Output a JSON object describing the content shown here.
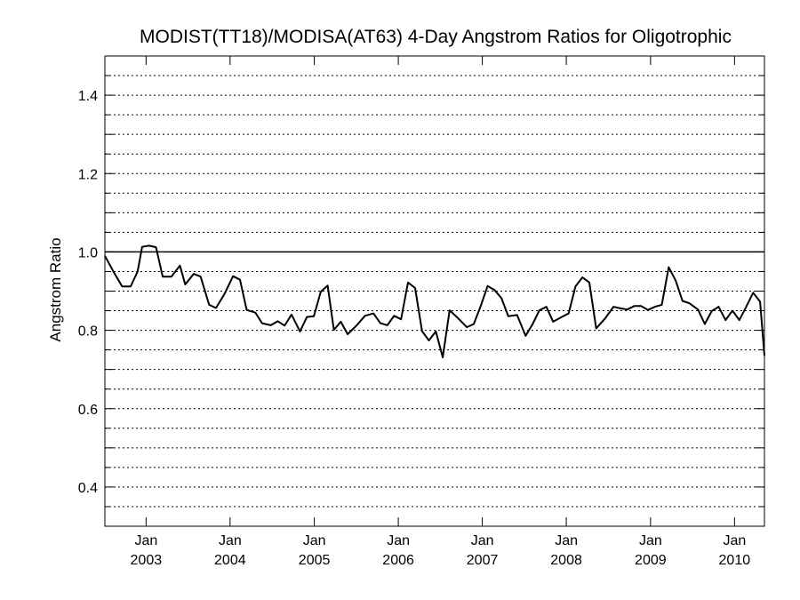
{
  "chart_data": {
    "type": "line",
    "title": "MODIST(TT18)/MODISA(AT63) 4-Day Angstrom Ratios for Oligotrophic",
    "xlabel": "",
    "ylabel": "Angstrom Ratio",
    "xlim": [
      "2002-07-06",
      "2010-05-11"
    ],
    "ylim": [
      0.3,
      1.5
    ],
    "yticks": [
      0.4,
      0.6,
      0.8,
      1.0,
      1.2,
      1.4
    ],
    "ytick_labels": [
      "0.4",
      "0.6",
      "0.8",
      "1.0",
      "1.2",
      "1.4"
    ],
    "xticks": [
      {
        "date": "2003-01-01",
        "month": "Jan",
        "year": "2003"
      },
      {
        "date": "2004-01-01",
        "month": "Jan",
        "year": "2004"
      },
      {
        "date": "2005-01-01",
        "month": "Jan",
        "year": "2005"
      },
      {
        "date": "2006-01-01",
        "month": "Jan",
        "year": "2006"
      },
      {
        "date": "2007-01-01",
        "month": "Jan",
        "year": "2007"
      },
      {
        "date": "2008-01-01",
        "month": "Jan",
        "year": "2008"
      },
      {
        "date": "2009-01-01",
        "month": "Jan",
        "year": "2009"
      },
      {
        "date": "2010-01-01",
        "month": "Jan",
        "year": "2010"
      }
    ],
    "grid": "dotted horizontal lines every 0.05",
    "reference_line": 1.0,
    "series": [
      {
        "color": "#000000",
        "x": [
          "2002-07-06",
          "2002-08-12",
          "2002-09-19",
          "2002-10-26",
          "2002-11-25",
          "2002-12-15",
          "2003-01-14",
          "2003-02-13",
          "2003-03-14",
          "2003-04-21",
          "2003-05-28",
          "2003-06-20",
          "2003-07-27",
          "2003-08-26",
          "2003-10-02",
          "2003-11-01",
          "2003-12-08",
          "2004-01-14",
          "2004-02-13",
          "2004-03-13",
          "2004-04-20",
          "2004-05-19",
          "2004-06-26",
          "2004-07-26",
          "2004-08-25",
          "2004-09-24",
          "2004-10-31",
          "2004-11-30",
          "2004-12-30",
          "2005-01-29",
          "2005-02-28",
          "2005-03-27",
          "2005-04-26",
          "2005-05-26",
          "2005-07-03",
          "2005-08-09",
          "2005-09-15",
          "2005-10-15",
          "2005-11-14",
          "2005-12-14",
          "2006-01-13",
          "2006-02-12",
          "2006-03-15",
          "2006-04-14",
          "2006-05-14",
          "2006-06-13",
          "2006-07-13",
          "2006-08-12",
          "2006-09-19",
          "2006-10-26",
          "2006-11-25",
          "2006-12-25",
          "2007-01-24",
          "2007-02-23",
          "2007-03-25",
          "2007-04-24",
          "2007-06-01",
          "2007-07-08",
          "2007-08-07",
          "2007-09-06",
          "2007-10-06",
          "2007-11-05",
          "2007-12-12",
          "2008-01-11",
          "2008-02-10",
          "2008-03-11",
          "2008-04-10",
          "2008-05-10",
          "2008-06-17",
          "2008-07-24",
          "2008-08-23",
          "2008-09-22",
          "2008-10-22",
          "2008-11-21",
          "2008-12-21",
          "2009-01-20",
          "2009-02-19",
          "2009-03-21",
          "2009-04-20",
          "2009-05-20",
          "2009-06-19",
          "2009-07-26",
          "2009-08-25",
          "2009-09-24",
          "2009-10-24",
          "2009-11-23",
          "2009-12-23",
          "2010-01-22",
          "2010-02-21",
          "2010-03-23",
          "2010-04-22",
          "2010-05-11"
        ],
        "y": [
          0.99,
          0.95,
          0.912,
          0.912,
          0.95,
          1.013,
          1.016,
          1.012,
          0.937,
          0.937,
          0.965,
          0.917,
          0.944,
          0.937,
          0.865,
          0.857,
          0.893,
          0.938,
          0.929,
          0.852,
          0.845,
          0.818,
          0.813,
          0.823,
          0.812,
          0.84,
          0.797,
          0.834,
          0.836,
          0.898,
          0.914,
          0.801,
          0.822,
          0.79,
          0.812,
          0.837,
          0.843,
          0.818,
          0.813,
          0.837,
          0.828,
          0.922,
          0.908,
          0.798,
          0.774,
          0.797,
          0.731,
          0.851,
          0.83,
          0.808,
          0.816,
          0.862,
          0.913,
          0.903,
          0.882,
          0.836,
          0.839,
          0.786,
          0.815,
          0.851,
          0.86,
          0.822,
          0.834,
          0.843,
          0.912,
          0.935,
          0.922,
          0.805,
          0.83,
          0.86,
          0.856,
          0.853,
          0.862,
          0.862,
          0.852,
          0.86,
          0.865,
          0.961,
          0.927,
          0.875,
          0.869,
          0.853,
          0.816,
          0.849,
          0.86,
          0.826,
          0.85,
          0.826,
          0.86,
          0.896,
          0.873,
          0.735
        ]
      }
    ]
  }
}
